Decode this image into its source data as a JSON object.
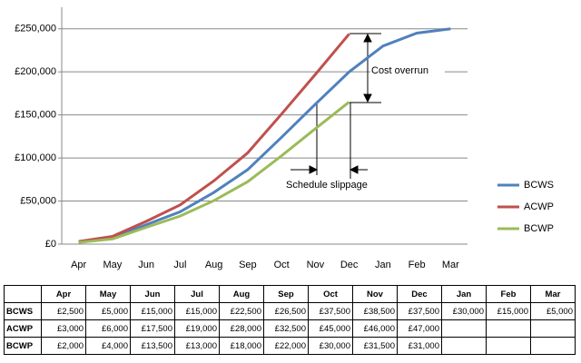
{
  "chart_data": {
    "type": "line",
    "categories": [
      "Apr",
      "May",
      "Jun",
      "Jul",
      "Aug",
      "Sep",
      "Oct",
      "Nov",
      "Dec",
      "Jan",
      "Feb",
      "Mar"
    ],
    "series": [
      {
        "name": "BCWS",
        "color": "#4f81bd",
        "values": [
          2500,
          7500,
          22500,
          37500,
          60000,
          86500,
          124000,
          162500,
          200000,
          230000,
          245000,
          250000
        ]
      },
      {
        "name": "ACWP",
        "color": "#c0504d",
        "values": [
          3000,
          9000,
          26500,
          45500,
          73500,
          106000,
          151000,
          197000,
          244000,
          null,
          null,
          null
        ]
      },
      {
        "name": "BCWP",
        "color": "#9bbb59",
        "values": [
          2000,
          6000,
          19500,
          32500,
          50500,
          72500,
          102500,
          134000,
          165000,
          null,
          null,
          null
        ]
      }
    ],
    "ylim": [
      0,
      275000
    ],
    "yticks": [
      {
        "value": 0,
        "label": "£0"
      },
      {
        "value": 50000,
        "label": "£50,000"
      },
      {
        "value": 100000,
        "label": "£100,000"
      },
      {
        "value": 150000,
        "label": "£150,000"
      },
      {
        "value": 200000,
        "label": "£200,000"
      },
      {
        "value": 250000,
        "label": "£250,000"
      }
    ],
    "grid": true,
    "legend": "right",
    "annotations": [
      "Cost overrun",
      "Schedule slippage"
    ]
  },
  "table": {
    "header": [
      "Apr",
      "May",
      "Jun",
      "Jul",
      "Aug",
      "Sep",
      "Oct",
      "Nov",
      "Dec",
      "Jan",
      "Feb",
      "Mar"
    ],
    "rows": [
      [
        "BCWS",
        "£2,500",
        "£5,000",
        "£15,000",
        "£15,000",
        "£22,500",
        "£26,500",
        "£37,500",
        "£38,500",
        "£37,500",
        "£30,000",
        "£15,000",
        "£5,000"
      ],
      [
        "ACWP",
        "£3,000",
        "£6,000",
        "£17,500",
        "£19,000",
        "£28,000",
        "£32,500",
        "£45,000",
        "£46,000",
        "£47,000"
      ],
      [
        "BCWP",
        "£2,000",
        "£4,000",
        "£13,500",
        "£13,000",
        "£18,000",
        "£22,000",
        "£30,000",
        "£31,500",
        "£31,000"
      ]
    ]
  }
}
